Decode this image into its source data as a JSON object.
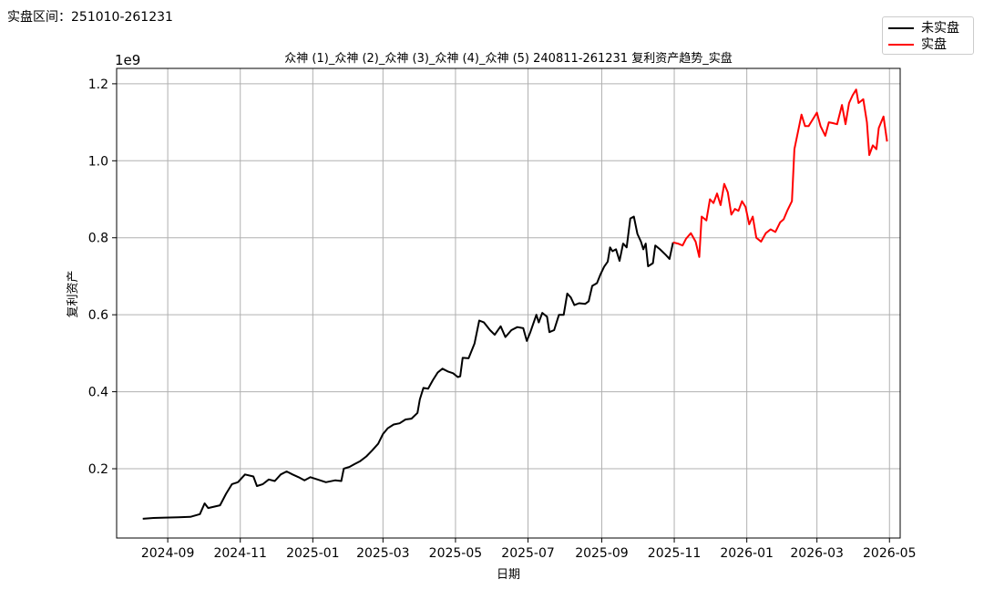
{
  "header": {
    "range_label": "实盘区间：251010-261231"
  },
  "legend": {
    "items": [
      {
        "label": "未实盘",
        "color": "#000000"
      },
      {
        "label": "实盘",
        "color": "#ff0000"
      }
    ]
  },
  "chart_data": {
    "type": "line",
    "title": "众神 (1)_众神 (2)_众神 (3)_众神 (4)_众神 (5) 240811-261231 复利资产趋势_实盘",
    "xlabel": "日期",
    "ylabel": "复利资产",
    "y_scale_label": "1e9",
    "ylim": [
      0.02,
      1.24
    ],
    "xlim": [
      "2024-07-20",
      "2026-05-10"
    ],
    "x_ticks": [
      "2024-09-01",
      "2024-11-01",
      "2025-01-01",
      "2025-03-01",
      "2025-05-01",
      "2025-07-01",
      "2025-09-01",
      "2025-11-01",
      "2026-01-01",
      "2026-03-01",
      "2026-05-01"
    ],
    "x_tick_labels": [
      "2024-09",
      "2024-11",
      "2025-01",
      "2025-03",
      "2025-05",
      "2025-07",
      "2025-09",
      "2025-11",
      "2026-01",
      "2026-03",
      "2026-05"
    ],
    "y_ticks": [
      0.2,
      0.4,
      0.6,
      0.8,
      1.0,
      1.2
    ],
    "y_tick_labels": [
      "0.2",
      "0.4",
      "0.6",
      "0.8",
      "1.0",
      "1.2"
    ],
    "grid": true,
    "legend_position": "top-right",
    "series": [
      {
        "name": "未实盘",
        "color": "#000000",
        "points": [
          [
            "2024-08-11",
            0.07
          ],
          [
            "2024-08-20",
            0.072
          ],
          [
            "2024-08-30",
            0.073
          ],
          [
            "2024-09-10",
            0.074
          ],
          [
            "2024-09-20",
            0.075
          ],
          [
            "2024-09-28",
            0.082
          ],
          [
            "2024-10-02",
            0.11
          ],
          [
            "2024-10-05",
            0.098
          ],
          [
            "2024-10-15",
            0.105
          ],
          [
            "2024-10-20",
            0.135
          ],
          [
            "2024-10-25",
            0.16
          ],
          [
            "2024-10-30",
            0.165
          ],
          [
            "2024-11-05",
            0.185
          ],
          [
            "2024-11-12",
            0.18
          ],
          [
            "2024-11-15",
            0.155
          ],
          [
            "2024-11-20",
            0.16
          ],
          [
            "2024-11-25",
            0.172
          ],
          [
            "2024-11-30",
            0.168
          ],
          [
            "2024-12-05",
            0.185
          ],
          [
            "2024-12-10",
            0.193
          ],
          [
            "2024-12-15",
            0.185
          ],
          [
            "2024-12-20",
            0.178
          ],
          [
            "2024-12-25",
            0.17
          ],
          [
            "2024-12-30",
            0.178
          ],
          [
            "2025-01-05",
            0.172
          ],
          [
            "2025-01-12",
            0.165
          ],
          [
            "2025-01-20",
            0.17
          ],
          [
            "2025-01-25",
            0.168
          ],
          [
            "2025-01-27",
            0.2
          ],
          [
            "2025-02-01",
            0.205
          ],
          [
            "2025-02-05",
            0.212
          ],
          [
            "2025-02-10",
            0.22
          ],
          [
            "2025-02-15",
            0.232
          ],
          [
            "2025-02-20",
            0.248
          ],
          [
            "2025-02-25",
            0.265
          ],
          [
            "2025-03-01",
            0.29
          ],
          [
            "2025-03-05",
            0.305
          ],
          [
            "2025-03-10",
            0.315
          ],
          [
            "2025-03-15",
            0.318
          ],
          [
            "2025-03-20",
            0.328
          ],
          [
            "2025-03-25",
            0.33
          ],
          [
            "2025-03-30",
            0.345
          ],
          [
            "2025-04-01",
            0.38
          ],
          [
            "2025-04-04",
            0.41
          ],
          [
            "2025-04-08",
            0.408
          ],
          [
            "2025-04-12",
            0.43
          ],
          [
            "2025-04-16",
            0.45
          ],
          [
            "2025-04-20",
            0.46
          ],
          [
            "2025-04-25",
            0.452
          ],
          [
            "2025-04-29",
            0.448
          ],
          [
            "2025-05-03",
            0.438
          ],
          [
            "2025-05-05",
            0.44
          ],
          [
            "2025-05-07",
            0.488
          ],
          [
            "2025-05-12",
            0.487
          ],
          [
            "2025-05-17",
            0.525
          ],
          [
            "2025-05-21",
            0.585
          ],
          [
            "2025-05-25",
            0.58
          ],
          [
            "2025-05-30",
            0.56
          ],
          [
            "2025-06-03",
            0.548
          ],
          [
            "2025-06-08",
            0.57
          ],
          [
            "2025-06-12",
            0.542
          ],
          [
            "2025-06-17",
            0.56
          ],
          [
            "2025-06-22",
            0.568
          ],
          [
            "2025-06-27",
            0.565
          ],
          [
            "2025-06-30",
            0.532
          ],
          [
            "2025-07-03",
            0.555
          ],
          [
            "2025-07-08",
            0.6
          ],
          [
            "2025-07-10",
            0.58
          ],
          [
            "2025-07-13",
            0.605
          ],
          [
            "2025-07-17",
            0.595
          ],
          [
            "2025-07-19",
            0.555
          ],
          [
            "2025-07-23",
            0.56
          ],
          [
            "2025-07-27",
            0.6
          ],
          [
            "2025-07-31",
            0.6
          ],
          [
            "2025-08-03",
            0.655
          ],
          [
            "2025-08-06",
            0.645
          ],
          [
            "2025-08-09",
            0.625
          ],
          [
            "2025-08-13",
            0.63
          ],
          [
            "2025-08-18",
            0.628
          ],
          [
            "2025-08-21",
            0.635
          ],
          [
            "2025-08-24",
            0.675
          ],
          [
            "2025-08-28",
            0.682
          ],
          [
            "2025-08-31",
            0.705
          ],
          [
            "2025-09-03",
            0.725
          ],
          [
            "2025-09-06",
            0.738
          ],
          [
            "2025-09-08",
            0.775
          ],
          [
            "2025-09-10",
            0.765
          ],
          [
            "2025-09-13",
            0.77
          ],
          [
            "2025-09-16",
            0.74
          ],
          [
            "2025-09-19",
            0.785
          ],
          [
            "2025-09-22",
            0.775
          ],
          [
            "2025-09-25",
            0.85
          ],
          [
            "2025-09-28",
            0.855
          ],
          [
            "2025-10-01",
            0.81
          ],
          [
            "2025-10-04",
            0.79
          ],
          [
            "2025-10-06",
            0.77
          ],
          [
            "2025-10-08",
            0.785
          ],
          [
            "2025-10-10",
            0.726
          ],
          [
            "2025-10-14",
            0.734
          ],
          [
            "2025-10-16",
            0.78
          ],
          [
            "2025-10-20",
            0.77
          ],
          [
            "2025-10-25",
            0.755
          ],
          [
            "2025-10-28",
            0.745
          ],
          [
            "2025-10-31",
            0.788
          ]
        ]
      },
      {
        "name": "实盘",
        "color": "#ff0000",
        "points": [
          [
            "2025-10-31",
            0.788
          ],
          [
            "2025-11-04",
            0.785
          ],
          [
            "2025-11-08",
            0.78
          ],
          [
            "2025-11-11",
            0.798
          ],
          [
            "2025-11-15",
            0.812
          ],
          [
            "2025-11-19",
            0.79
          ],
          [
            "2025-11-22",
            0.75
          ],
          [
            "2025-11-24",
            0.855
          ],
          [
            "2025-11-28",
            0.845
          ],
          [
            "2025-12-01",
            0.9
          ],
          [
            "2025-12-04",
            0.89
          ],
          [
            "2025-12-07",
            0.915
          ],
          [
            "2025-12-10",
            0.885
          ],
          [
            "2025-12-13",
            0.94
          ],
          [
            "2025-12-16",
            0.918
          ],
          [
            "2025-12-19",
            0.86
          ],
          [
            "2025-12-22",
            0.875
          ],
          [
            "2025-12-25",
            0.87
          ],
          [
            "2025-12-28",
            0.895
          ],
          [
            "2025-12-31",
            0.88
          ],
          [
            "2026-01-03",
            0.835
          ],
          [
            "2026-01-06",
            0.855
          ],
          [
            "2026-01-09",
            0.8
          ],
          [
            "2026-01-13",
            0.79
          ],
          [
            "2026-01-17",
            0.812
          ],
          [
            "2026-01-21",
            0.822
          ],
          [
            "2026-01-25",
            0.815
          ],
          [
            "2026-01-29",
            0.84
          ],
          [
            "2026-02-01",
            0.848
          ],
          [
            "2026-02-04",
            0.87
          ],
          [
            "2026-02-08",
            0.895
          ],
          [
            "2026-02-10",
            1.03
          ],
          [
            "2026-02-13",
            1.075
          ],
          [
            "2026-02-16",
            1.12
          ],
          [
            "2026-02-19",
            1.09
          ],
          [
            "2026-02-22",
            1.09
          ],
          [
            "2026-02-26",
            1.11
          ],
          [
            "2026-03-01",
            1.125
          ],
          [
            "2026-03-04",
            1.09
          ],
          [
            "2026-03-08",
            1.065
          ],
          [
            "2026-03-11",
            1.1
          ],
          [
            "2026-03-14",
            1.098
          ],
          [
            "2026-03-18",
            1.095
          ],
          [
            "2026-03-22",
            1.145
          ],
          [
            "2026-03-25",
            1.095
          ],
          [
            "2026-03-28",
            1.15
          ],
          [
            "2026-03-31",
            1.17
          ],
          [
            "2026-04-03",
            1.185
          ],
          [
            "2026-04-05",
            1.15
          ],
          [
            "2026-04-09",
            1.16
          ],
          [
            "2026-04-12",
            1.1
          ],
          [
            "2026-04-14",
            1.015
          ],
          [
            "2026-04-17",
            1.04
          ],
          [
            "2026-04-20",
            1.03
          ],
          [
            "2026-04-22",
            1.085
          ],
          [
            "2026-04-26",
            1.115
          ],
          [
            "2026-04-29",
            1.05
          ]
        ]
      }
    ]
  }
}
